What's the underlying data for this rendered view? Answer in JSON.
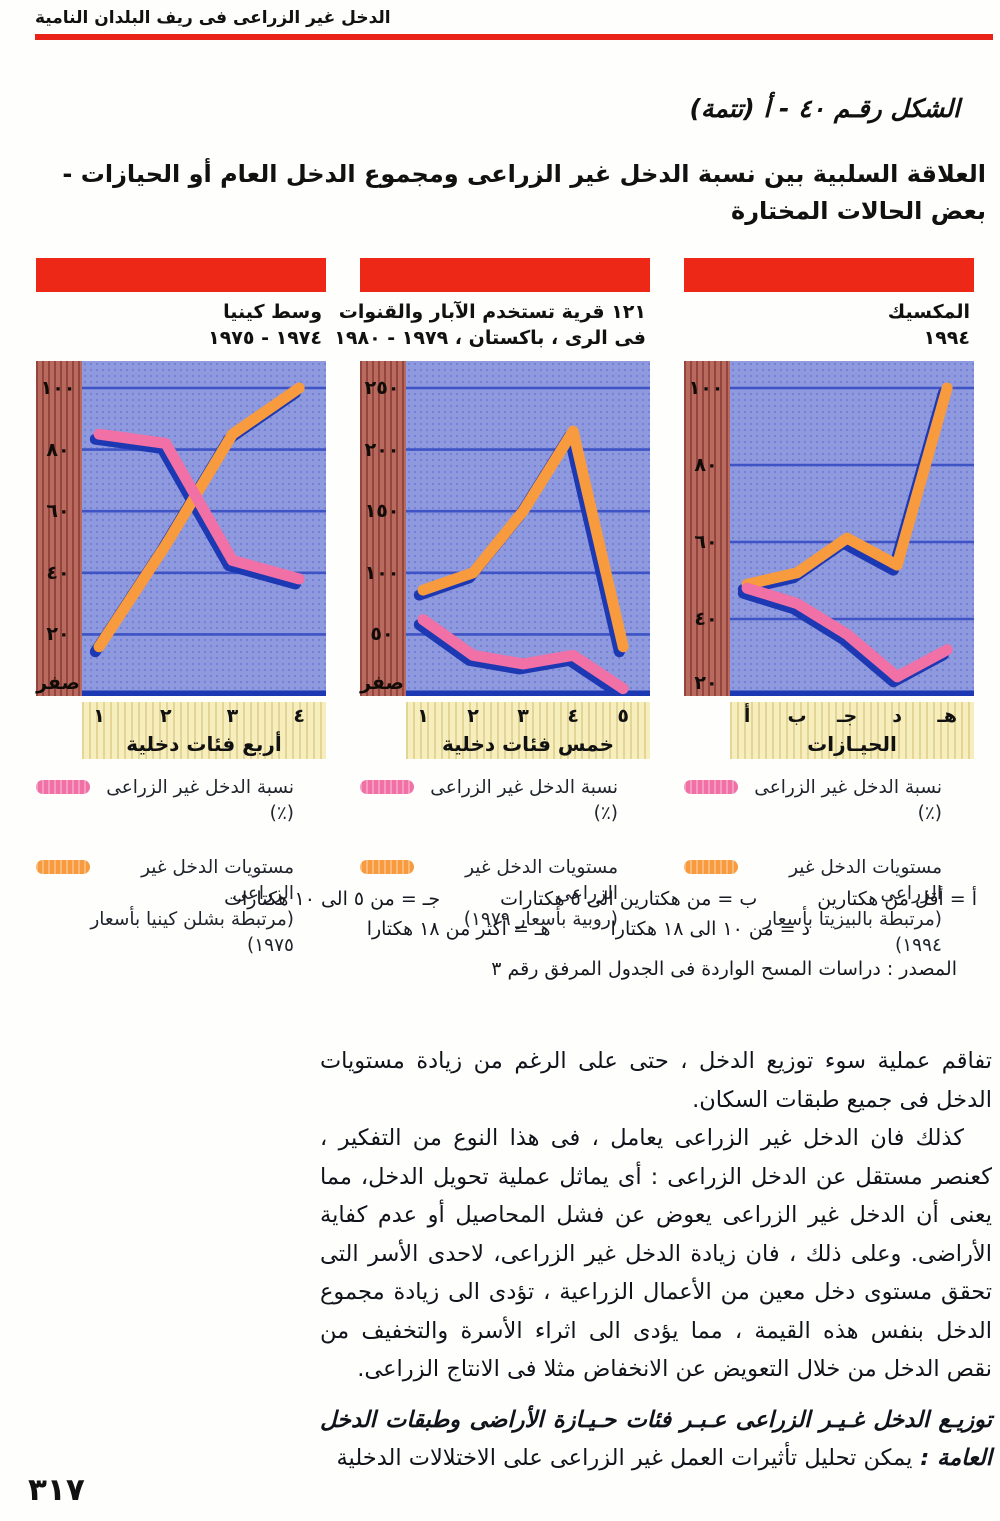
{
  "page": {
    "header": "الدخل غير الزراعى فى ريف البلدان النامية",
    "figure_caption": "الشكل رقـم ٤٠ - أ (تتمة)",
    "title_line1": "العلاقة السلبية بين نسبة الدخل غير الزراعى ومجموع الدخل العام أو الحيازات -",
    "title_line2": "بعض الحالات المختارة",
    "page_number": "٣١٧"
  },
  "colors": {
    "accent_red": "#ee2817",
    "rule_red": "#e92318",
    "plot_background": "#8f99de",
    "grid_blue": "#3d53c6",
    "shadow_blue": "#1c38b2",
    "pink_line": "#f170a5",
    "orange_line": "#f79b3e",
    "y_band_rust": "#b96a5f",
    "x_band_yellow": "#f7eebd"
  },
  "chart_data": [
    {
      "id": "mexico",
      "type": "line",
      "title_lines": [
        "المكسيك",
        "١٩٩٤"
      ],
      "x_labels": [
        "أ",
        "ب",
        "جـ",
        "د",
        "هـ"
      ],
      "x_axis_title": "الحيـازات",
      "y_ticks": [
        {
          "label": "١٠٠",
          "value": 100
        },
        {
          "label": "٨٠",
          "value": 80
        },
        {
          "label": "٦٠",
          "value": 60
        },
        {
          "label": "٤٠",
          "value": 40
        },
        {
          "label": "٢٠",
          "value": 20
        }
      ],
      "y_range": [
        20,
        100
      ],
      "grid": true,
      "legend_position": "below",
      "series": [
        {
          "name": "نسبة الدخل غير الزراعى (٪)",
          "color": "#f170a5",
          "values": [
            48,
            44,
            36,
            25,
            32
          ],
          "legend_lines": [
            "نسبة الدخل غير الزراعى (٪)"
          ]
        },
        {
          "name": "مستويات الدخل غير الزراعى",
          "color": "#f79b3e",
          "values": [
            49,
            52,
            61,
            54,
            100
          ],
          "legend_lines": [
            "مستويات الدخل غير الزراعى",
            "(مرتبطة بالبيزيتا بأسعار ١٩٩٤)"
          ]
        }
      ]
    },
    {
      "id": "pakistan",
      "type": "line",
      "title_lines": [
        "١٢١ قرية تستخدم الآبار والقنوات",
        "فى الرى ، باكستان ، ١٩٧٩ - ١٩٨٠"
      ],
      "x_labels": [
        "١",
        "٢",
        "٣",
        "٤",
        "٥"
      ],
      "x_axis_title": "خمس فئات دخلية",
      "y_ticks": [
        {
          "label": "٢٥٠",
          "value": 250
        },
        {
          "label": "٢٠٠",
          "value": 200
        },
        {
          "label": "١٥٠",
          "value": 150
        },
        {
          "label": "١٠٠",
          "value": 100
        },
        {
          "label": "٥٠",
          "value": 50
        },
        {
          "label": "صفر",
          "value": 0
        }
      ],
      "y_range": [
        0,
        250
      ],
      "grid": true,
      "legend_position": "below",
      "series": [
        {
          "name": "نسبة الدخل غير الزراعى (٪)",
          "color": "#f170a5",
          "values": [
            62,
            33,
            26,
            33,
            6
          ],
          "legend_lines": [
            "نسبة الدخل غير الزراعى (٪)"
          ]
        },
        {
          "name": "مستويات الدخل غير الزراعى",
          "color": "#f79b3e",
          "values": [
            86,
            100,
            150,
            215,
            40
          ],
          "legend_lines": [
            "مستويات الدخل غير الزراعى",
            "(روبية بأسعار ١٩٧٩)"
          ]
        }
      ]
    },
    {
      "id": "kenya",
      "type": "line",
      "title_lines": [
        "وسط كينيا",
        "١٩٧٤ - ١٩٧٥"
      ],
      "x_labels": [
        "١",
        "٢",
        "٣",
        "٤"
      ],
      "x_axis_title": "أربع فئات دخلية",
      "y_ticks": [
        {
          "label": "١٠٠",
          "value": 100
        },
        {
          "label": "٨٠",
          "value": 80
        },
        {
          "label": "٦٠",
          "value": 60
        },
        {
          "label": "٤٠",
          "value": 40
        },
        {
          "label": "٢٠",
          "value": 20
        },
        {
          "label": "صفر",
          "value": 0
        }
      ],
      "y_range": [
        0,
        100
      ],
      "grid": true,
      "legend_position": "below",
      "series": [
        {
          "name": "نسبة الدخل غير الزراعى (٪)",
          "color": "#f170a5",
          "values": [
            85,
            82,
            44,
            38
          ],
          "legend_lines": [
            "نسبة الدخل غير الزراعى (٪)"
          ]
        },
        {
          "name": "مستويات الدخل غير الزراعى",
          "color": "#f79b3e",
          "values": [
            16,
            49,
            85,
            100
          ],
          "legend_lines": [
            "مستويات الدخل غير الزراعى",
            "(مرتبطة بشلن كينيا بأسعار ١٩٧٥)"
          ]
        }
      ]
    }
  ],
  "footnotes": {
    "row1": [
      "أ = أقل من هكتارين",
      "ب = من هكتارين الى ٥ هكتارات",
      "جـ = من ٥ الى ١٠ هكتارات"
    ],
    "row2": [
      "د = من ١٠ الى ١٨ هكتارا",
      "هـ = أكثر من ١٨ هكتارا"
    ],
    "source": "المصدر : دراسات المسح الواردة فى الجدول المرفق رقم ٣"
  },
  "body": {
    "para1_lines": [
      "تفاقم عملية سوء توزيع الدخل ، حتى على الرغم من زيادة مستويات",
      "الدخل فى جميع طبقات السكان."
    ],
    "para2_lines": [
      "كذلك فان الدخل غير الزراعى يعامل ، فى هذا النوع من التفكير ،",
      "كعنصر مستقل عن الدخل الزراعى : أى يماثل عملية تحويل الدخل، مما",
      "يعنى أن الدخل غير الزراعى يعوض عن فشل المحاصيل أو عدم كفاية",
      "الأراضى. وعلى ذلك ، فان زيادة الدخل غير الزراعى، لاحدى الأسر التى",
      "تحقق مستوى دخل معين من الأعمال الزراعية ، تؤدى الى زيادة مجموع",
      "الدخل بنفس هذه القيمة ، مما يؤدى الى اثراء الأسرة والتخفيف من",
      "نقص الدخل من خلال التعويض عن الانخفاض مثلا فى الانتاج الزراعى."
    ],
    "heading_line": "توزيـع الدخل غـيـر الزراعى عـبـر فئات حـيـازة الأراضى وطبقات الدخل",
    "heading2_bold": "العامة :",
    "heading2_rest": "يمكن تحليل تأثيرات العمل غير الزراعى على الاختلالات الدخلية"
  }
}
